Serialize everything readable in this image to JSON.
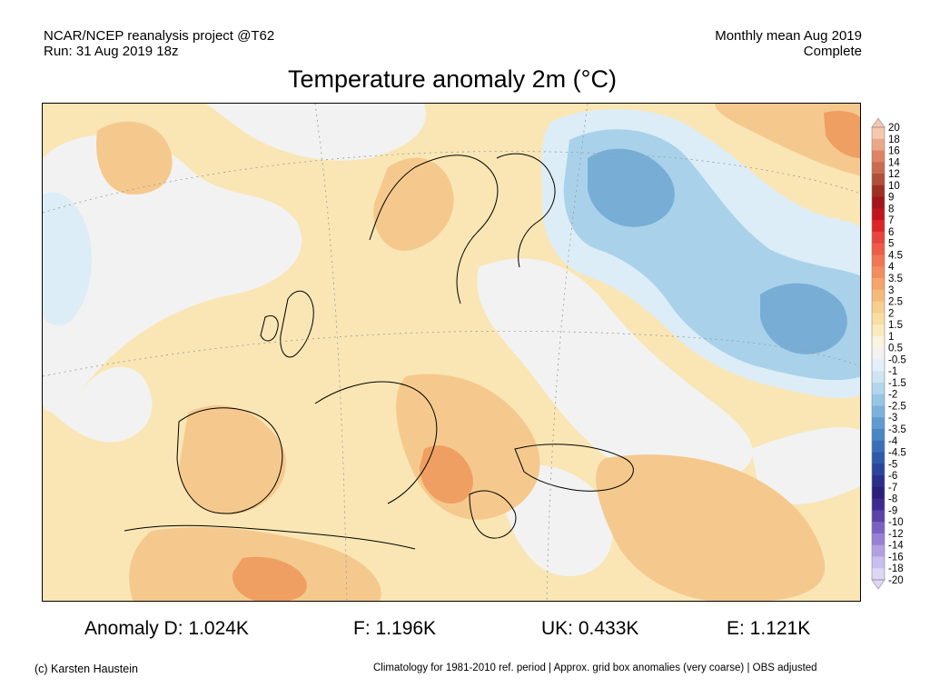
{
  "header": {
    "source": "NCAR/NCEP reanalysis project @T62",
    "run": "Run: 31 Aug 2019 18z",
    "period": "Monthly mean Aug 2019",
    "status": "Complete"
  },
  "title": "Temperature anomaly 2m (°C)",
  "colors": {
    "warm_light": "#f9e6b4",
    "warm_mid": "#f5c98d",
    "warm_strong": "#ef9f62",
    "neutral": "#f2f2f2",
    "cool_light": "#dcedf7",
    "cool_mid": "#a9d2ea",
    "cool_strong": "#78aed6"
  },
  "legend": {
    "levels": [
      "20",
      "18",
      "16",
      "14",
      "12",
      "10",
      "9",
      "8",
      "7",
      "6",
      "5",
      "4.5",
      "4",
      "3.5",
      "3",
      "2.5",
      "2",
      "1.5",
      "1",
      "0.5",
      "-0.5",
      "-1",
      "-1.5",
      "-2",
      "-2.5",
      "-3",
      "-3.5",
      "-4",
      "-4.5",
      "-5",
      "-6",
      "-7",
      "-8",
      "-9",
      "-10",
      "-12",
      "-14",
      "-16",
      "-18",
      "-20"
    ],
    "colors": [
      "#f7c7b0",
      "#eba78a",
      "#dc8464",
      "#c96b52",
      "#b04f3a",
      "#9e2f22",
      "#a3141b",
      "#c0151c",
      "#dc2626",
      "#e8443b",
      "#ee5b46",
      "#f17552",
      "#f38d5e",
      "#f5a46c",
      "#f6b97c",
      "#f7ce8e",
      "#f8dea2",
      "#f9ebbd",
      "#faf4de",
      "#f2f2f2",
      "#e4f0f9",
      "#cfe5f3",
      "#b3d6ed",
      "#96c5e5",
      "#7bb2dc",
      "#5e9bd0",
      "#4886c4",
      "#3a6fb8",
      "#2e5aa9",
      "#2a449a",
      "#2a2f8a",
      "#2b1f7a",
      "#3d2a8e",
      "#5a44a8",
      "#7a62c2",
      "#9681d4",
      "#b1a1e2",
      "#c9bfee",
      "#ddd6f5"
    ]
  },
  "stats": {
    "d": "Anomaly D: 1.024K",
    "f": "F: 1.196K",
    "uk": "UK: 0.433K",
    "e": "E: 1.121K"
  },
  "footer": {
    "credit": "(c) Karsten Haustein",
    "note": "Climatology for 1981-2010 ref. period | Approx. grid box anomalies (very coarse) | OBS adjusted"
  }
}
